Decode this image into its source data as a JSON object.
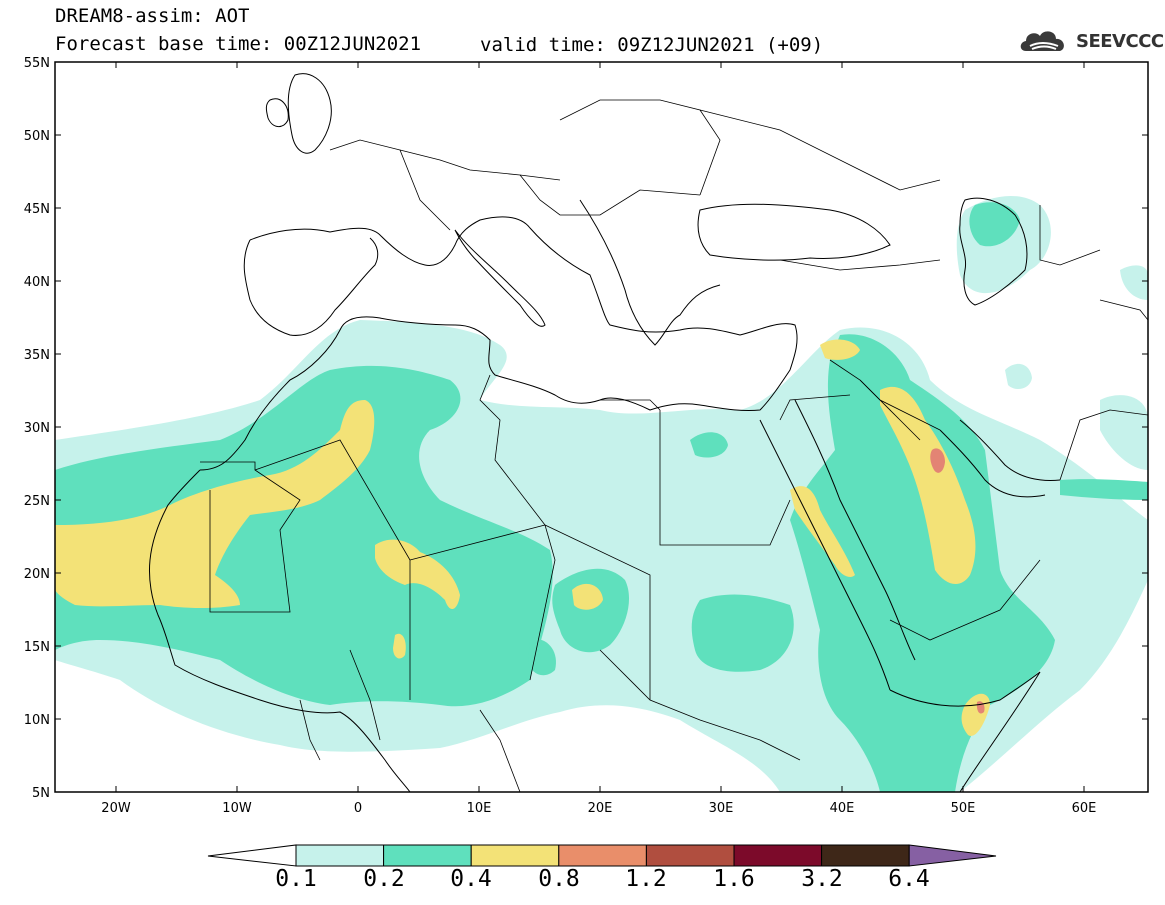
{
  "header": {
    "title_line1": "DREAM8-assim: AOT",
    "title_line2": "Forecast base time: 00Z12JUN2021",
    "valid_time": "valid time: 09Z12JUN2021 (+09)"
  },
  "logo": {
    "text": "SEEVCCC",
    "icon": "cloud-icon"
  },
  "axes": {
    "lat_labels": [
      "55N",
      "50N",
      "45N",
      "40N",
      "35N",
      "30N",
      "25N",
      "20N",
      "15N",
      "10N",
      "5N"
    ],
    "lon_labels": [
      "20W",
      "10W",
      "0",
      "10E",
      "20E",
      "30E",
      "40E",
      "50E",
      "60E"
    ]
  },
  "colorbar": {
    "labels": [
      "0.1",
      "0.2",
      "0.4",
      "0.8",
      "1.2",
      "1.6",
      "3.2",
      "6.4"
    ],
    "colors": [
      "#c6f2eb",
      "#5fe0bd",
      "#f3e277",
      "#e98e6a",
      "#b04e3f",
      "#7c0a2a",
      "#3e2718",
      "#8660a3"
    ]
  },
  "map_colors": {
    "level1": "#c6f2eb",
    "level2": "#5fe0bd",
    "level3": "#f3e277",
    "level4": "#e38474"
  }
}
